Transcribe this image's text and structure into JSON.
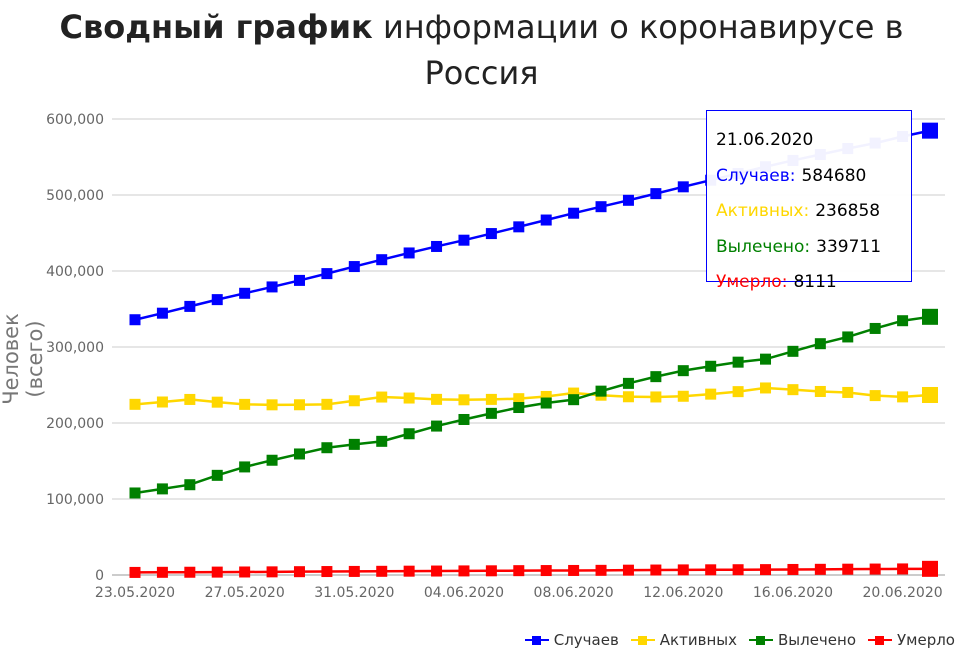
{
  "title": {
    "bold": "Сводный график",
    "rest": "информации о коронавирусе в Россия"
  },
  "chart_data": {
    "type": "line",
    "title": "Сводный график информации о коронавирусе в Россия",
    "ylabel": "Человек (всего)",
    "xlabel": "",
    "ylim": [
      0,
      600000
    ],
    "yticks": [
      "0",
      "100,000",
      "200,000",
      "300,000",
      "400,000",
      "500,000",
      "600,000"
    ],
    "x": [
      "23.05.2020",
      "24.05.2020",
      "25.05.2020",
      "26.05.2020",
      "27.05.2020",
      "28.05.2020",
      "29.05.2020",
      "30.05.2020",
      "31.05.2020",
      "01.06.2020",
      "02.06.2020",
      "03.06.2020",
      "04.06.2020",
      "05.06.2020",
      "06.06.2020",
      "07.06.2020",
      "08.06.2020",
      "09.06.2020",
      "10.06.2020",
      "11.06.2020",
      "12.06.2020",
      "13.06.2020",
      "14.06.2020",
      "15.06.2020",
      "16.06.2020",
      "17.06.2020",
      "18.06.2020",
      "19.06.2020",
      "20.06.2020",
      "21.06.2020"
    ],
    "xticks": [
      "23.05.2020",
      "27.05.2020",
      "31.05.2020",
      "04.06.2020",
      "08.06.2020",
      "12.06.2020",
      "16.06.2020",
      "20.06.2020"
    ],
    "legend_position": "bottom-right",
    "series": [
      {
        "name": "Случаев",
        "color": "#0000ff",
        "values": [
          335882,
          344481,
          353427,
          362342,
          370680,
          379051,
          387623,
          396575,
          405843,
          414878,
          423741,
          432277,
          440538,
          449256,
          458102,
          467073,
          476043,
          484630,
          493023,
          501800,
          510761,
          519458,
          528267,
          537210,
          545458,
          553301,
          561091,
          568292,
          576952,
          584680
        ]
      },
      {
        "name": "Активных",
        "color": "#ffd700",
        "values": [
          224558,
          227641,
          230996,
          227406,
          224504,
          223916,
          223992,
          224551,
          229267,
          234146,
          232846,
          231105,
          230531,
          231056,
          232010,
          234942,
          239384,
          236579,
          234533,
          234273,
          235184,
          237988,
          241269,
          246108,
          243868,
          241481,
          240203,
          236055,
          234368,
          236858
        ]
      },
      {
        "name": "Вылечено",
        "color": "#008000",
        "values": [
          107936,
          113299,
          118798,
          131129,
          142208,
          150993,
          159257,
          167469,
          171883,
          175877,
          185858,
          195957,
          204623,
          212680,
          220375,
          226272,
          230688,
          241917,
          252140,
          260995,
          268862,
          274641,
          280050,
          284021,
          294306,
          304342,
          313238,
          324406,
          334592,
          339711
        ]
      },
      {
        "name": "Умерло",
        "color": "#ff0000",
        "values": [
          3388,
          3541,
          3633,
          3807,
          3968,
          4142,
          4374,
          4555,
          4693,
          4855,
          5037,
          5215,
          5384,
          5520,
          5717,
          5859,
          5971,
          6134,
          6350,
          6532,
          6715,
          6829,
          6948,
          7081,
          7284,
          7478,
          7650,
          7831,
          7992,
          8111
        ]
      }
    ]
  },
  "tooltip": {
    "date": "21.06.2020",
    "rows": [
      {
        "label": "Случаев:",
        "value": "584680",
        "color": "#0000ff"
      },
      {
        "label": "Активных:",
        "value": "236858",
        "color": "#ffd700"
      },
      {
        "label": "Вылечено:",
        "value": "339711",
        "color": "#008000"
      },
      {
        "label": "Умерло:",
        "value": "8111",
        "color": "#ff0000"
      }
    ]
  }
}
